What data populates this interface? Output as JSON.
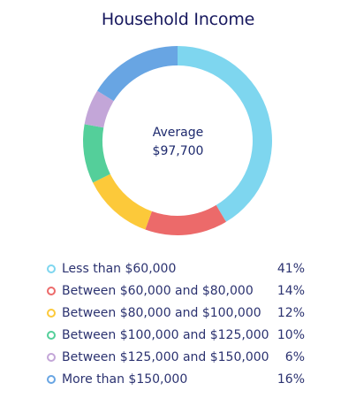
{
  "chart_data": {
    "type": "pie",
    "title": "Household Income",
    "center_label": "Average",
    "center_value": "$97,700",
    "categories": [
      "Less than $60,000",
      "Between $60,000 and $80,000",
      "Between $80,000 and $100,000",
      "Between $100,000 and $125,000",
      "Between $125,000 and $150,000",
      "More than $150,000"
    ],
    "values": [
      41,
      14,
      12,
      10,
      6,
      16
    ],
    "value_labels": [
      "41%",
      "14%",
      "12%",
      "10%",
      "6%",
      "16%"
    ],
    "colors": [
      "#7ed6ef",
      "#ec6a6a",
      "#fcc93a",
      "#54cf9a",
      "#c3a6d8",
      "#68a5e3"
    ],
    "legend_placement": "bottom"
  }
}
